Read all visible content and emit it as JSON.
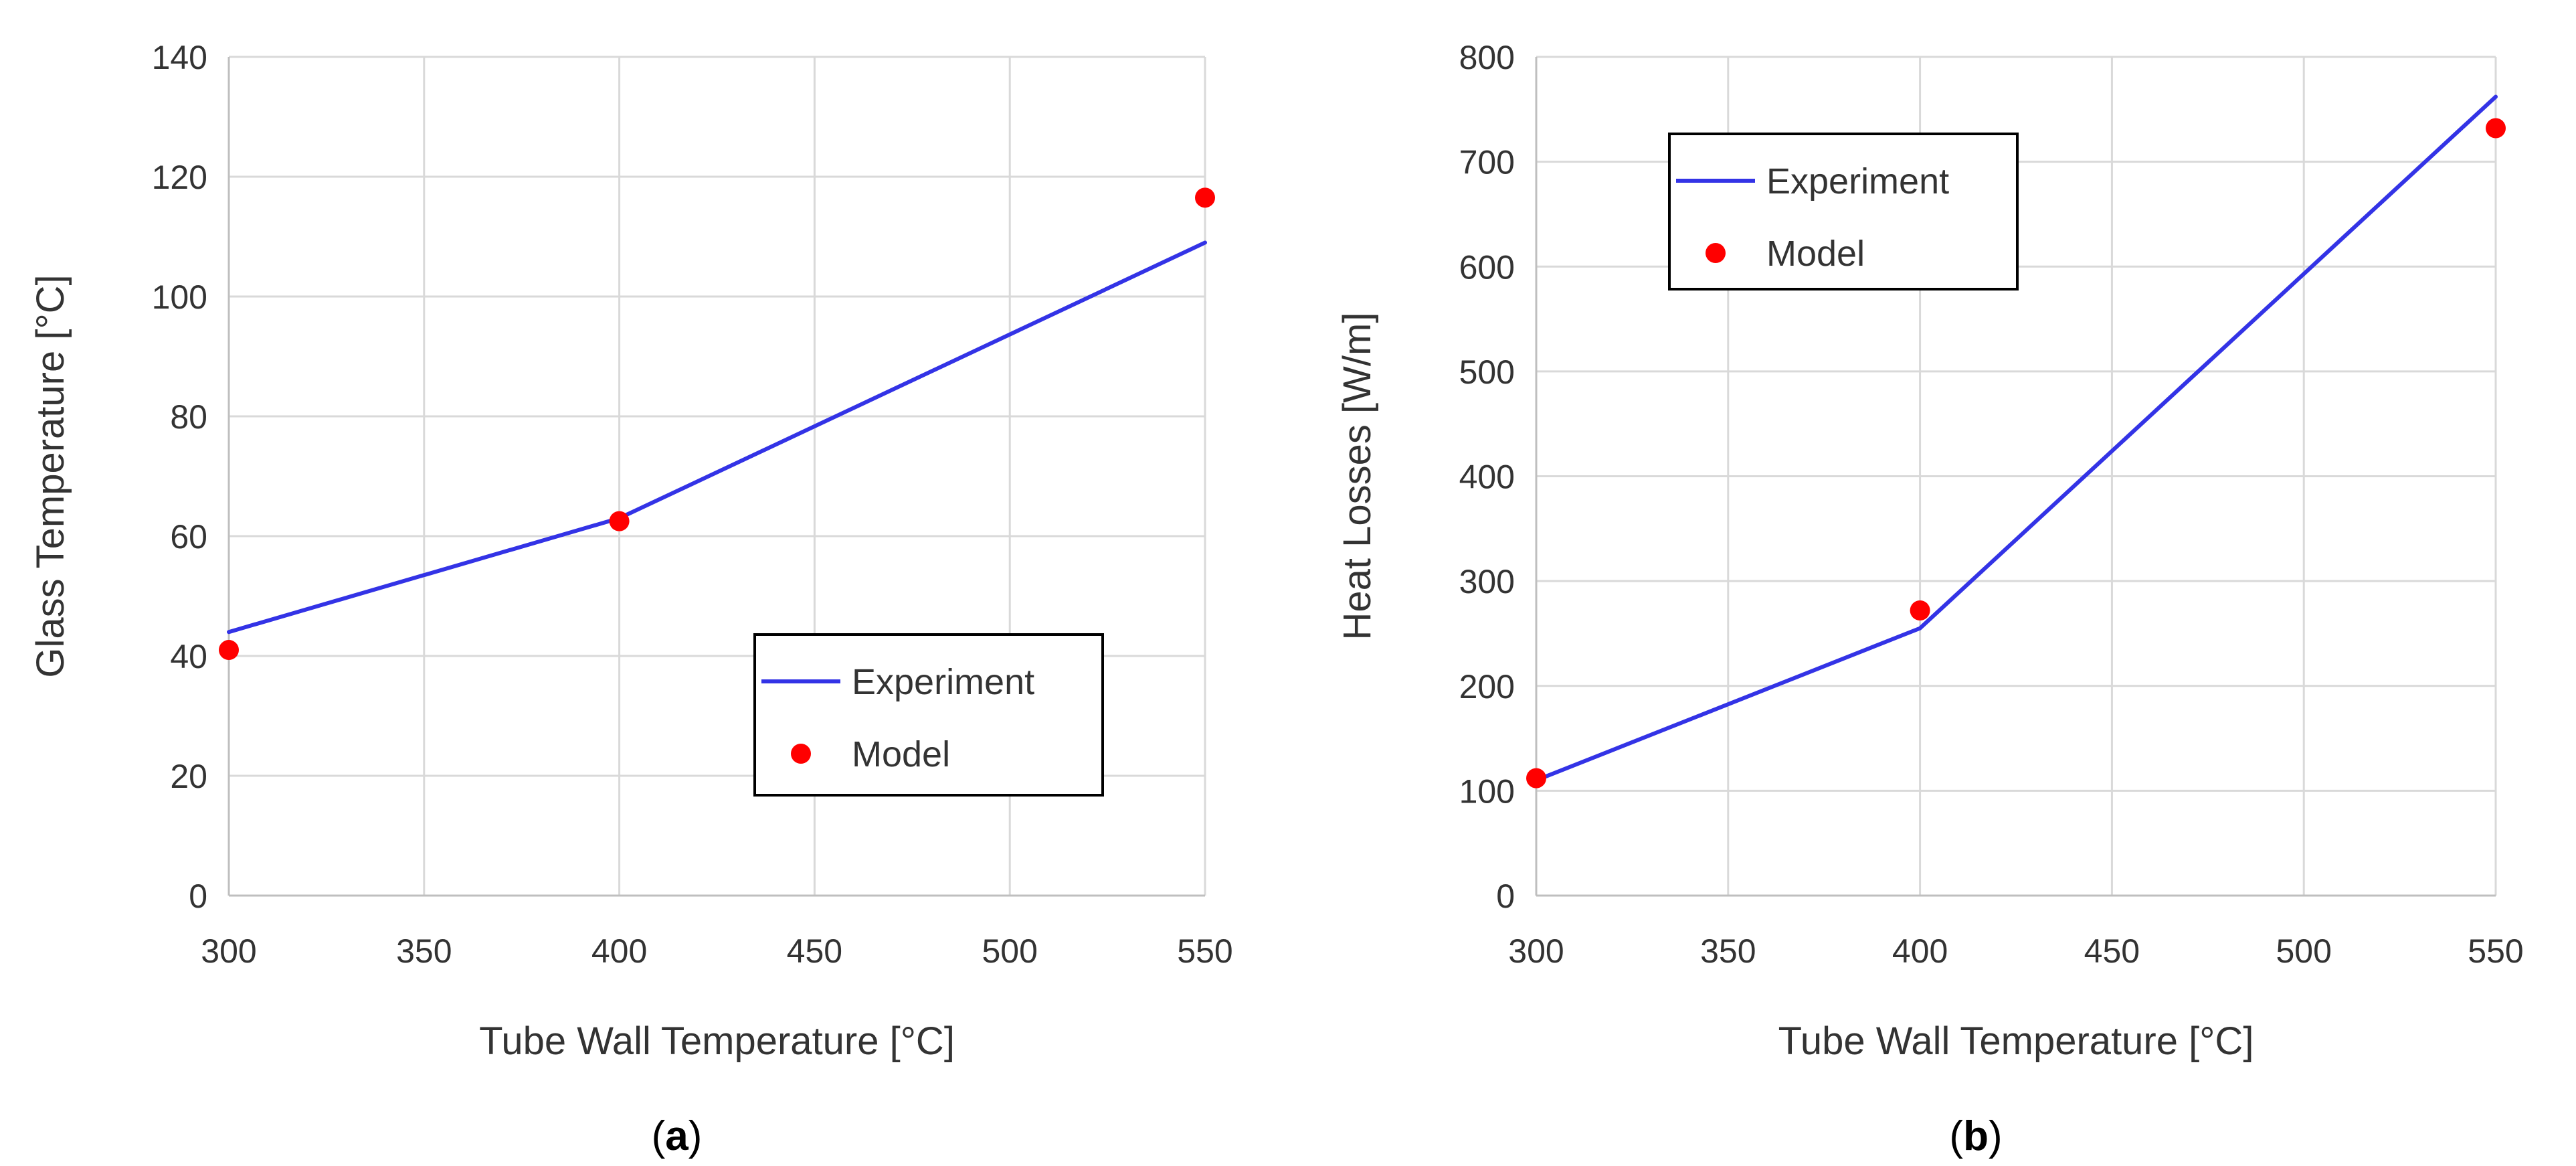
{
  "chart_data": [
    {
      "id": "a",
      "type": "line",
      "caption_letter": "a",
      "caption_open": "(",
      "caption_close": ")",
      "xlabel": "Tube Wall Temperature [°C]",
      "ylabel": "Glass Temperature [°C]",
      "xlim": [
        300,
        550
      ],
      "ylim": [
        0,
        140
      ],
      "xticks": [
        300,
        350,
        400,
        450,
        500,
        550
      ],
      "yticks": [
        0,
        20,
        40,
        60,
        80,
        100,
        120,
        140
      ],
      "grid": true,
      "legend_position": "bottom-right",
      "series": [
        {
          "name": "Experiment",
          "kind": "line",
          "color": "#3333e6",
          "x": [
            300,
            400,
            550
          ],
          "y": [
            44,
            63,
            109
          ]
        },
        {
          "name": "Model",
          "kind": "scatter",
          "color": "#ff0000",
          "x": [
            300,
            400,
            550
          ],
          "y": [
            41,
            62.5,
            116.5
          ]
        }
      ]
    },
    {
      "id": "b",
      "type": "line",
      "caption_letter": "b",
      "caption_open": "(",
      "caption_close": ")",
      "xlabel": "Tube Wall Temperature [°C]",
      "ylabel": "Heat Losses [W/m]",
      "xlim": [
        300,
        550
      ],
      "ylim": [
        0,
        800
      ],
      "xticks": [
        300,
        350,
        400,
        450,
        500,
        550
      ],
      "yticks": [
        0,
        100,
        200,
        300,
        400,
        500,
        600,
        700,
        800
      ],
      "grid": true,
      "legend_position": "top-left",
      "series": [
        {
          "name": "Experiment",
          "kind": "line",
          "color": "#3333e6",
          "x": [
            300,
            400,
            550
          ],
          "y": [
            110,
            255,
            762
          ]
        },
        {
          "name": "Model",
          "kind": "scatter",
          "color": "#ff0000",
          "x": [
            300,
            400,
            550
          ],
          "y": [
            112,
            272,
            732
          ]
        }
      ]
    }
  ]
}
